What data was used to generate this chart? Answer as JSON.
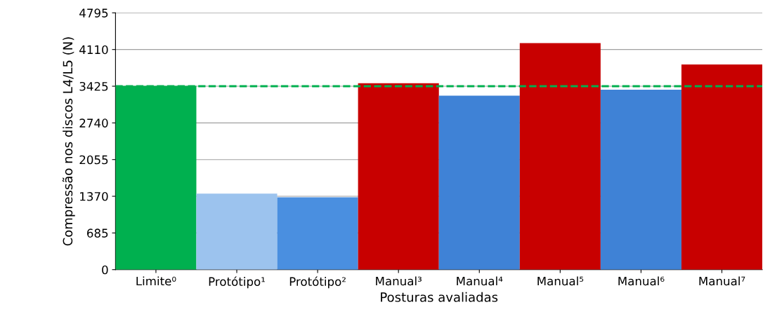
{
  "chart_data": {
    "type": "bar",
    "xlabel": "Posturas avaliadas",
    "ylabel": "Compressão nos discos L4/L5 (N)",
    "categories": [
      "Limite⁰",
      "Protótipo¹",
      "Protótipo²",
      "Manual³",
      "Manual⁴",
      "Manual⁵",
      "Manual⁶",
      "Manual⁷"
    ],
    "values": [
      3430,
      1420,
      1350,
      3480,
      3250,
      4230,
      3360,
      3830
    ],
    "colors": [
      "#00b04f",
      "#9cc3ee",
      "#4a8fe0",
      "#c80000",
      "#3f82d6",
      "#c80000",
      "#3f82d6",
      "#c80000"
    ],
    "ylim": [
      0,
      4795
    ],
    "yticks": [
      0,
      685,
      1370,
      2055,
      2740,
      3425,
      4110,
      4795
    ],
    "grid": "y",
    "ref_lines": [
      {
        "axis": "y",
        "value": 3425,
        "color": "#00b04f",
        "line_style": "dashed"
      }
    ]
  }
}
